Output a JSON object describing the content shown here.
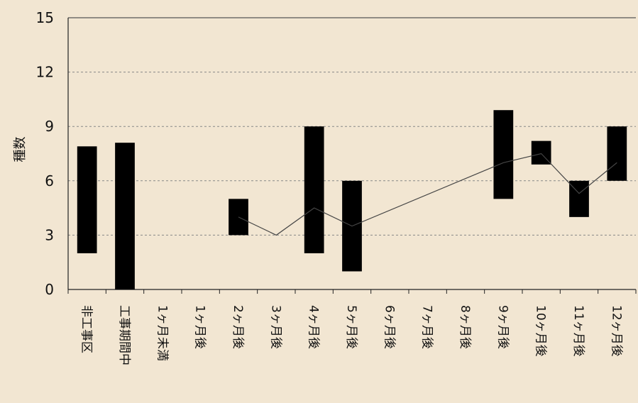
{
  "chart_data": {
    "type": "range-bar-with-line",
    "ylabel": "種数",
    "xlabel": "",
    "ylim": [
      0,
      15
    ],
    "yticks": [
      0,
      3,
      6,
      9,
      12,
      15
    ],
    "grid": "horizontal-dashed",
    "categories": [
      "非工事区",
      "工事期間中",
      "1ヶ月未満",
      "1ヶ月後",
      "2ヶ月後",
      "3ヶ月後",
      "4ヶ月後",
      "5ヶ月後",
      "6ヶ月後",
      "7ヶ月後",
      "8ヶ月後",
      "9ヶ月後",
      "10ヶ月後",
      "11ヶ月後",
      "12ヶ月後"
    ],
    "ranges": [
      {
        "category": "非工事区",
        "min": 2,
        "max": 7.9
      },
      {
        "category": "工事期間中",
        "min": 0,
        "max": 8.1
      },
      {
        "category": "2ヶ月後",
        "min": 3,
        "max": 5
      },
      {
        "category": "4ヶ月後",
        "min": 2,
        "max": 9
      },
      {
        "category": "5ヶ月後",
        "min": 1,
        "max": 6
      },
      {
        "category": "9ヶ月後",
        "min": 5,
        "max": 9.9
      },
      {
        "category": "10ヶ月後",
        "min": 6.9,
        "max": 8.2
      },
      {
        "category": "11ヶ月後",
        "min": 4,
        "max": 6
      },
      {
        "category": "12ヶ月後",
        "min": 6,
        "max": 9
      }
    ],
    "mean_line": [
      {
        "category": "2ヶ月後",
        "value": 4
      },
      {
        "category": "3ヶ月後",
        "value": 3
      },
      {
        "category": "4ヶ月後",
        "value": 4.5
      },
      {
        "category": "5ヶ月後",
        "value": 3.5
      },
      {
        "category": "9ヶ月後",
        "value": 7
      },
      {
        "category": "10ヶ月後",
        "value": 7.5
      },
      {
        "category": "11ヶ月後",
        "value": 5.3
      },
      {
        "category": "12ヶ月後",
        "value": 7
      }
    ]
  }
}
